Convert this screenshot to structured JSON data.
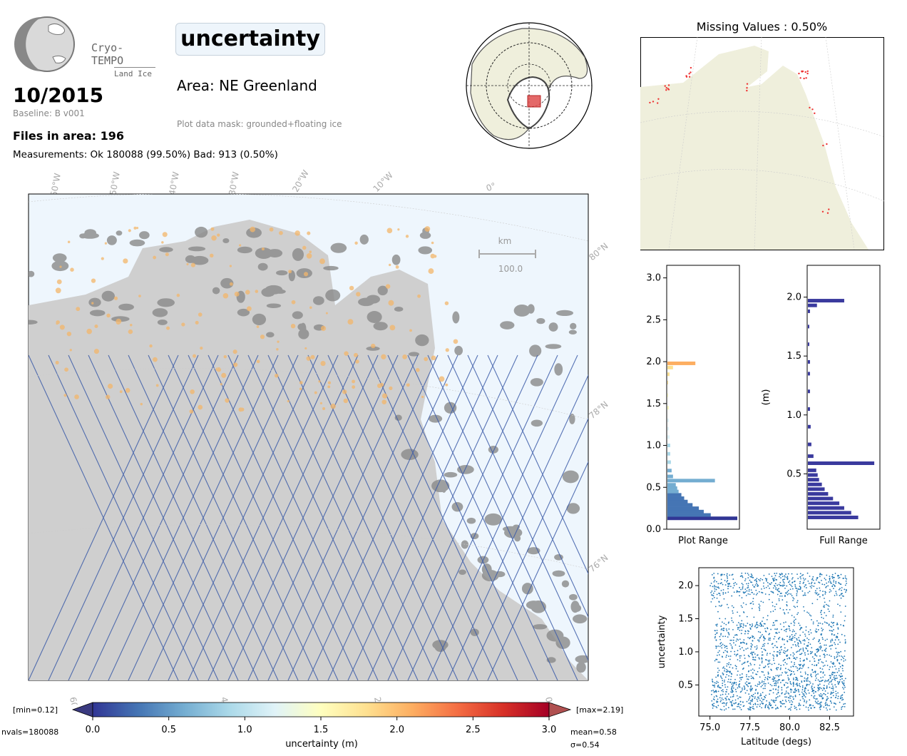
{
  "header": {
    "logo_name": "Cryo-TEMPO",
    "logo_sub": "Land Ice",
    "parameter": "uncertainty",
    "area": "Area: NE Greenland",
    "mask": "Plot data mask: grounded+floating ice",
    "date": "10/2015",
    "baseline": "Baseline: B v001",
    "files": "Files in area: 196",
    "measurements": "Measurements: Ok 180088 (99.50%) Bad: 913 (0.50%)"
  },
  "missing": {
    "title": "Missing Values : 0.50%"
  },
  "map": {
    "lon_labels": [
      "60°W",
      "50°W",
      "40°W",
      "30°W",
      "20°W",
      "10°W",
      "0°"
    ],
    "lat_labels": [
      "80°N",
      "78°N",
      "76°N"
    ],
    "bottom_lon_labels": [
      "60°W",
      "40°W",
      "20°W",
      "0°W"
    ],
    "scalebar_unit": "km",
    "scalebar_value": "100.0",
    "colors": {
      "ocean": "#eef6fd",
      "ice": "#cfcfcf",
      "land": "#8a8a8a",
      "track": "#3b5ba8"
    }
  },
  "colorbar": {
    "min_label": "[min=0.12]",
    "max_label": "[max=2.19]",
    "nvals_label": "nvals=180088",
    "mean_label": "mean=0.58",
    "sigma_label": "σ=0.54",
    "label": "uncertainty (m)",
    "ticks": [
      "0.0",
      "0.5",
      "1.0",
      "1.5",
      "2.0",
      "2.5",
      "3.0"
    ],
    "range": [
      0,
      3
    ],
    "colors": [
      "#313695",
      "#4575b4",
      "#74add1",
      "#abd9e9",
      "#e0f3f8",
      "#ffffbf",
      "#fee090",
      "#fdae61",
      "#f46d43",
      "#d73027",
      "#a50026"
    ]
  },
  "chart_data": [
    {
      "type": "bar",
      "orientation": "horizontal",
      "title": "",
      "xlabel": "Plot Range",
      "ylabel": "",
      "ylim": [
        0,
        3.15
      ],
      "yticks": [
        "0.0",
        "0.5",
        "1.0",
        "1.5",
        "2.0",
        "2.5",
        "3.0"
      ],
      "bins": [
        {
          "y": 0.13,
          "v": 1.0
        },
        {
          "y": 0.17,
          "v": 0.62
        },
        {
          "y": 0.21,
          "v": 0.52
        },
        {
          "y": 0.25,
          "v": 0.45
        },
        {
          "y": 0.29,
          "v": 0.36
        },
        {
          "y": 0.33,
          "v": 0.29
        },
        {
          "y": 0.37,
          "v": 0.24
        },
        {
          "y": 0.41,
          "v": 0.2
        },
        {
          "y": 0.45,
          "v": 0.16
        },
        {
          "y": 0.49,
          "v": 0.14
        },
        {
          "y": 0.53,
          "v": 0.12
        },
        {
          "y": 0.58,
          "v": 0.68
        },
        {
          "y": 0.63,
          "v": 0.08
        },
        {
          "y": 0.7,
          "v": 0.06
        },
        {
          "y": 0.8,
          "v": 0.05
        },
        {
          "y": 0.9,
          "v": 0.04
        },
        {
          "y": 1.0,
          "v": 0.04
        },
        {
          "y": 1.1,
          "v": 0.03
        },
        {
          "y": 1.2,
          "v": 0.02
        },
        {
          "y": 1.3,
          "v": 0.02
        },
        {
          "y": 1.45,
          "v": 0.02
        },
        {
          "y": 1.6,
          "v": 0.01
        },
        {
          "y": 1.75,
          "v": 0.01
        },
        {
          "y": 1.85,
          "v": 0.03
        },
        {
          "y": 1.93,
          "v": 0.08
        },
        {
          "y": 1.98,
          "v": 0.4
        }
      ]
    },
    {
      "type": "bar",
      "orientation": "horizontal",
      "title": "",
      "xlabel": "Full Range",
      "ylabel": "(m)",
      "ylim": [
        0.03,
        2.27
      ],
      "yticks": [
        "0.5",
        "1.0",
        "1.5",
        "2.0"
      ],
      "color": "#3a3a9e",
      "bins": [
        {
          "y": 0.13,
          "v": 0.72
        },
        {
          "y": 0.17,
          "v": 0.62
        },
        {
          "y": 0.21,
          "v": 0.52
        },
        {
          "y": 0.25,
          "v": 0.45
        },
        {
          "y": 0.29,
          "v": 0.36
        },
        {
          "y": 0.33,
          "v": 0.29
        },
        {
          "y": 0.37,
          "v": 0.24
        },
        {
          "y": 0.41,
          "v": 0.2
        },
        {
          "y": 0.45,
          "v": 0.16
        },
        {
          "y": 0.49,
          "v": 0.14
        },
        {
          "y": 0.53,
          "v": 0.12
        },
        {
          "y": 0.59,
          "v": 0.95
        },
        {
          "y": 0.65,
          "v": 0.08
        },
        {
          "y": 0.75,
          "v": 0.05
        },
        {
          "y": 0.9,
          "v": 0.04
        },
        {
          "y": 1.05,
          "v": 0.03
        },
        {
          "y": 1.2,
          "v": 0.03
        },
        {
          "y": 1.35,
          "v": 0.03
        },
        {
          "y": 1.45,
          "v": 0.03
        },
        {
          "y": 1.6,
          "v": 0.02
        },
        {
          "y": 1.75,
          "v": 0.02
        },
        {
          "y": 1.88,
          "v": 0.03
        },
        {
          "y": 1.93,
          "v": 0.13
        },
        {
          "y": 1.97,
          "v": 0.52
        }
      ]
    },
    {
      "type": "scatter",
      "title": "",
      "xlabel": "Latitude (degs)",
      "ylabel": "uncertainty",
      "xlim": [
        74.3,
        84.0
      ],
      "ylim": [
        0.03,
        2.27
      ],
      "xticks": [
        "75.0",
        "77.5",
        "80.0",
        "82.5"
      ],
      "yticks": [
        "0.5",
        "1.0",
        "1.5",
        "2.0"
      ],
      "color": "#1f77b4",
      "bands": [
        {
          "x": [
            75.1,
            83.5
          ],
          "y": [
            0.12,
            0.6
          ],
          "density": 1.0
        },
        {
          "x": [
            75.3,
            83.5
          ],
          "y": [
            0.6,
            1.45
          ],
          "density": 0.7
        },
        {
          "x": [
            75.0,
            83.6
          ],
          "y": [
            1.45,
            1.85
          ],
          "density": 0.25
        },
        {
          "x": [
            75.0,
            83.6
          ],
          "y": [
            1.85,
            2.19
          ],
          "density": 0.85
        }
      ]
    }
  ]
}
